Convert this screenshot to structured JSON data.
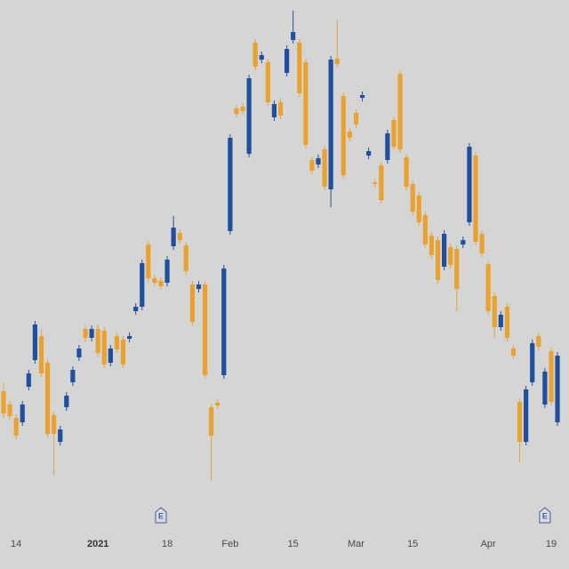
{
  "chart_data": {
    "type": "candlestick",
    "up_color": "#1f4f9e",
    "down_color": "#e9a22f",
    "ylim": [
      0,
      640
    ],
    "categories": [
      null,
      null,
      "14",
      null,
      null,
      null,
      null,
      null,
      null,
      null,
      null,
      null,
      null,
      null,
      null,
      "2021",
      null,
      null,
      null,
      null,
      null,
      null,
      null,
      null,
      null,
      null,
      "18",
      null,
      null,
      null,
      null,
      null,
      null,
      null,
      null,
      null,
      "Feb",
      null,
      null,
      null,
      null,
      null,
      null,
      null,
      null,
      null,
      "15",
      null,
      null,
      null,
      null,
      null,
      null,
      null,
      null,
      null,
      "Mar",
      null,
      null,
      null,
      null,
      null,
      null,
      null,
      null,
      "15",
      null,
      null,
      null,
      null,
      null,
      null,
      null,
      null,
      null,
      null,
      null,
      "Apr",
      null,
      null,
      null,
      null,
      null,
      null,
      null,
      null,
      null,
      "19",
      null
    ],
    "events": [
      null,
      null,
      null,
      null,
      null,
      null,
      null,
      null,
      null,
      null,
      null,
      null,
      null,
      null,
      null,
      null,
      null,
      null,
      null,
      null,
      null,
      null,
      null,
      null,
      null,
      "E",
      null,
      null,
      null,
      null,
      null,
      null,
      null,
      null,
      null,
      null,
      null,
      null,
      null,
      null,
      null,
      null,
      null,
      null,
      null,
      null,
      null,
      null,
      null,
      null,
      null,
      null,
      null,
      null,
      null,
      null,
      null,
      null,
      null,
      null,
      null,
      null,
      null,
      null,
      null,
      null,
      null,
      null,
      null,
      null,
      null,
      null,
      null,
      null,
      null,
      null,
      null,
      null,
      null,
      null,
      null,
      null,
      null,
      null,
      null,
      null,
      "E",
      null,
      null
    ],
    "open": [
      200,
      185,
      170,
      165,
      205,
      235,
      262,
      232,
      173,
      143,
      182,
      210,
      238,
      270,
      260,
      270,
      268,
      232,
      262,
      258,
      259,
      290,
      295,
      365,
      327,
      324,
      322,
      363,
      378,
      364,
      320,
      315,
      320,
      182,
      187,
      218,
      380,
      518,
      520,
      467,
      592,
      573,
      570,
      508,
      525,
      558,
      595,
      592,
      570,
      460,
      455,
      472,
      427,
      574,
      532,
      492,
      513,
      530,
      465,
      435,
      454,
      460,
      505,
      557,
      463,
      433,
      420,
      398,
      375,
      370,
      340,
      362,
      360,
      365,
      390,
      465,
      377,
      343,
      307,
      272,
      295,
      248,
      188,
      143,
      210,
      262,
      185,
      245,
      165
    ],
    "high": [
      210,
      189,
      174,
      189,
      224,
      279,
      270,
      236,
      177,
      161,
      199,
      228,
      252,
      274,
      274,
      275,
      272,
      252,
      266,
      262,
      266,
      299,
      348,
      369,
      331,
      328,
      352,
      397,
      382,
      368,
      324,
      324,
      324,
      186,
      191,
      342,
      489,
      522,
      524,
      556,
      596,
      582,
      574,
      527,
      529,
      589,
      628,
      596,
      574,
      464,
      466,
      476,
      577,
      618,
      536,
      496,
      517,
      537,
      474,
      439,
      458,
      494,
      509,
      561,
      467,
      437,
      424,
      402,
      379,
      374,
      381,
      366,
      364,
      374,
      479,
      469,
      381,
      347,
      311,
      290,
      299,
      252,
      192,
      206,
      258,
      266,
      226,
      249,
      244
    ],
    "low": [
      170,
      168,
      146,
      161,
      201,
      231,
      216,
      148,
      105,
      139,
      178,
      206,
      234,
      256,
      256,
      239,
      226,
      228,
      243,
      226,
      255,
      286,
      291,
      323,
      318,
      314,
      318,
      359,
      366,
      331,
      274,
      311,
      214,
      100,
      180,
      214,
      376,
      508,
      511,
      463,
      561,
      569,
      521,
      504,
      506,
      554,
      591,
      531,
      473,
      444,
      451,
      426,
      407,
      564,
      439,
      481,
      496,
      526,
      461,
      429,
      411,
      456,
      471,
      468,
      426,
      398,
      386,
      361,
      349,
      321,
      336,
      338,
      290,
      361,
      386,
      364,
      351,
      286,
      260,
      268,
      256,
      236,
      120,
      139,
      206,
      246,
      181,
      184,
      161
    ],
    "close": [
      175,
      172,
      150,
      185,
      220,
      275,
      220,
      152,
      152,
      157,
      195,
      224,
      248,
      260,
      270,
      243,
      230,
      248,
      247,
      230,
      262,
      295,
      344,
      327,
      322,
      318,
      348,
      384,
      370,
      335,
      278,
      320,
      218,
      150,
      184,
      338,
      485,
      512,
      515,
      552,
      565,
      578,
      525,
      523,
      510,
      585,
      604,
      535,
      477,
      448,
      462,
      430,
      573,
      568,
      443,
      485,
      500,
      533,
      470,
      433,
      415,
      490,
      475,
      472,
      430,
      402,
      390,
      365,
      353,
      325,
      377,
      342,
      315,
      370,
      475,
      368,
      355,
      290,
      272,
      286,
      260,
      240,
      143,
      202,
      254,
      250,
      222,
      188,
      240
    ]
  }
}
